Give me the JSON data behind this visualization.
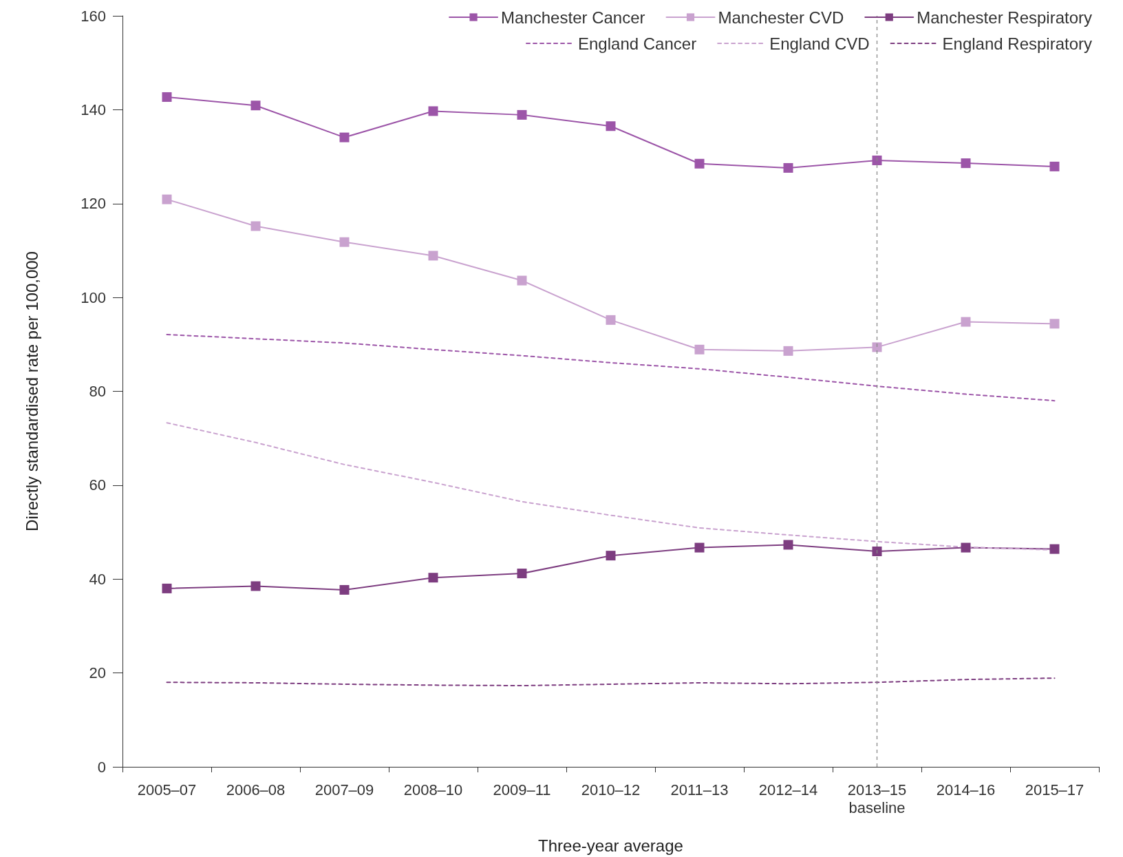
{
  "chart_data": {
    "type": "line",
    "xlabel": "Three-year average",
    "ylabel": "Directly standardised rate per 100,000",
    "categories": [
      "2005–07",
      "2006–08",
      "2007–09",
      "2008–10",
      "2009–11",
      "2010–12",
      "2011–13",
      "2012–14",
      "2013–15",
      "2014–16",
      "2015–17"
    ],
    "ylim": [
      0,
      160
    ],
    "yticks": [
      0,
      20,
      40,
      60,
      80,
      100,
      120,
      140,
      160
    ],
    "grid": false,
    "legend": "top right",
    "series": [
      {
        "name": "Manchester Cancer",
        "color": "#9c55a8",
        "marker": "square",
        "line_style": "solid",
        "values": [
          142.7,
          140.9,
          134.1,
          139.7,
          138.9,
          136.5,
          128.5,
          127.6,
          129.2,
          128.6,
          127.9
        ]
      },
      {
        "name": "Manchester CVD",
        "color": "#c9a2cf",
        "marker": "square",
        "line_style": "solid",
        "values": [
          120.9,
          115.2,
          111.8,
          108.9,
          103.6,
          95.2,
          88.9,
          88.6,
          89.4,
          94.8,
          94.4
        ]
      },
      {
        "name": "Manchester Respiratory",
        "color": "#7d3d80",
        "marker": "square",
        "line_style": "solid",
        "values": [
          38.0,
          38.5,
          37.7,
          40.3,
          41.2,
          45.0,
          46.7,
          47.3,
          45.9,
          46.7,
          46.4
        ]
      },
      {
        "name": "England Cancer",
        "color": "#9c55a8",
        "marker": "none",
        "line_style": "dashed",
        "values": [
          92.1,
          91.2,
          90.3,
          88.9,
          87.6,
          86.1,
          84.8,
          83.0,
          81.1,
          79.4,
          78.0
        ]
      },
      {
        "name": "England CVD",
        "color": "#c9a2cf",
        "marker": "none",
        "line_style": "dashed",
        "values": [
          73.3,
          69.1,
          64.4,
          60.6,
          56.5,
          53.6,
          50.9,
          49.4,
          48.0,
          46.8,
          46.2
        ]
      },
      {
        "name": "England Respiratory",
        "color": "#7d3d80",
        "marker": "none",
        "line_style": "dashed",
        "values": [
          18.0,
          17.9,
          17.6,
          17.4,
          17.3,
          17.6,
          17.9,
          17.7,
          18.0,
          18.6,
          18.9
        ]
      }
    ],
    "ref_lines": [
      {
        "axis": "x",
        "value": "2013–15",
        "label": "baseline",
        "color": "#888888",
        "line_style": "dashed"
      }
    ]
  }
}
